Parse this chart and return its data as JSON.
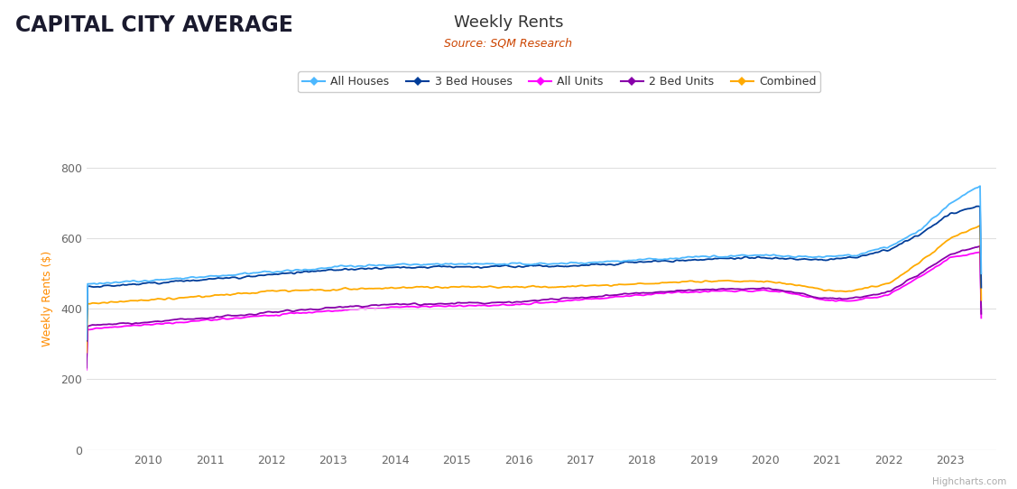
{
  "title": "Weekly Rents",
  "subtitle": "Source: SQM Research",
  "suptitle": "CAPITAL CITY AVERAGE",
  "ylabel": "Weekly Rents ($)",
  "background_color": "#ffffff",
  "ylim": [
    0,
    860
  ],
  "yticks": [
    0,
    200,
    400,
    600,
    800
  ],
  "xlim_start": 2009.0,
  "xlim_end": 2023.75,
  "xtick_years": [
    2010,
    2011,
    2012,
    2013,
    2014,
    2015,
    2016,
    2017,
    2018,
    2019,
    2020,
    2021,
    2022,
    2023
  ],
  "colors": {
    "All Houses": "#4db8ff",
    "3 Bed Houses": "#003d99",
    "All Units": "#ff00ff",
    "2 Bed Units": "#8800aa",
    "Combined": "#ffaa00"
  },
  "suptitle_color": "#1a1a2e",
  "title_color": "#333333",
  "subtitle_color": "#cc4400",
  "axis_label_color": "#ff8c00",
  "tick_color": "#666666",
  "grid_color_h": "#e0e0e0",
  "grid_color_v": "#f0f0f0",
  "watermark": "Highcharts.com"
}
